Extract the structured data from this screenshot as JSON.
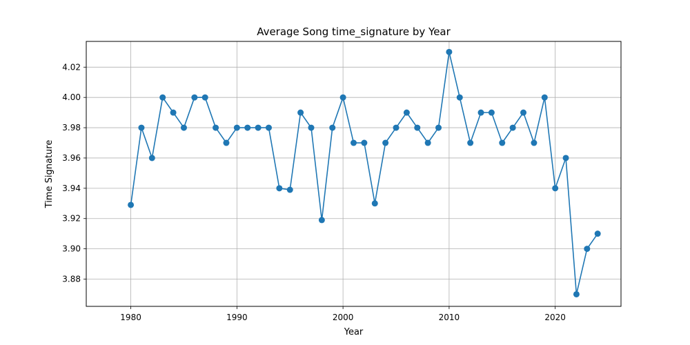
{
  "chart_data": {
    "type": "line",
    "title": "Average Song time_signature by Year",
    "xlabel": "Year",
    "ylabel": "Time Signature",
    "xlim": [
      1975.8,
      2026.2
    ],
    "ylim": [
      3.862,
      4.037
    ],
    "xticks": [
      1980,
      1990,
      2000,
      2010,
      2020
    ],
    "yticks": [
      3.88,
      3.9,
      3.92,
      3.94,
      3.96,
      3.98,
      4.0,
      4.02
    ],
    "ytick_labels": [
      "3.88",
      "3.90",
      "3.92",
      "3.94",
      "3.96",
      "3.98",
      "4.00",
      "4.02"
    ],
    "grid": true,
    "color": "#1f77b4",
    "marker": "circle",
    "series": [
      {
        "x": [
          1980,
          1981,
          1982,
          1983,
          1984,
          1985,
          1986,
          1987,
          1988,
          1989,
          1990,
          1991,
          1992,
          1993,
          1994,
          1995,
          1996,
          1997,
          1998,
          1999,
          2000,
          2001,
          2002,
          2003,
          2004,
          2005,
          2006,
          2007,
          2008,
          2009,
          2010,
          2011,
          2012,
          2013,
          2014,
          2015,
          2016,
          2017,
          2018,
          2019,
          2020,
          2021,
          2022,
          2023,
          2024
        ],
        "y": [
          3.929,
          3.98,
          3.96,
          4.0,
          3.99,
          3.98,
          4.0,
          4.0,
          3.98,
          3.97,
          3.98,
          3.98,
          3.98,
          3.98,
          3.94,
          3.939,
          3.99,
          3.98,
          3.919,
          3.98,
          4.0,
          3.97,
          3.97,
          3.93,
          3.97,
          3.98,
          3.99,
          3.98,
          3.97,
          3.98,
          4.03,
          4.0,
          3.97,
          3.99,
          3.99,
          3.97,
          3.98,
          3.99,
          3.97,
          4.0,
          3.94,
          3.96,
          3.87,
          3.9,
          3.91
        ]
      }
    ]
  }
}
